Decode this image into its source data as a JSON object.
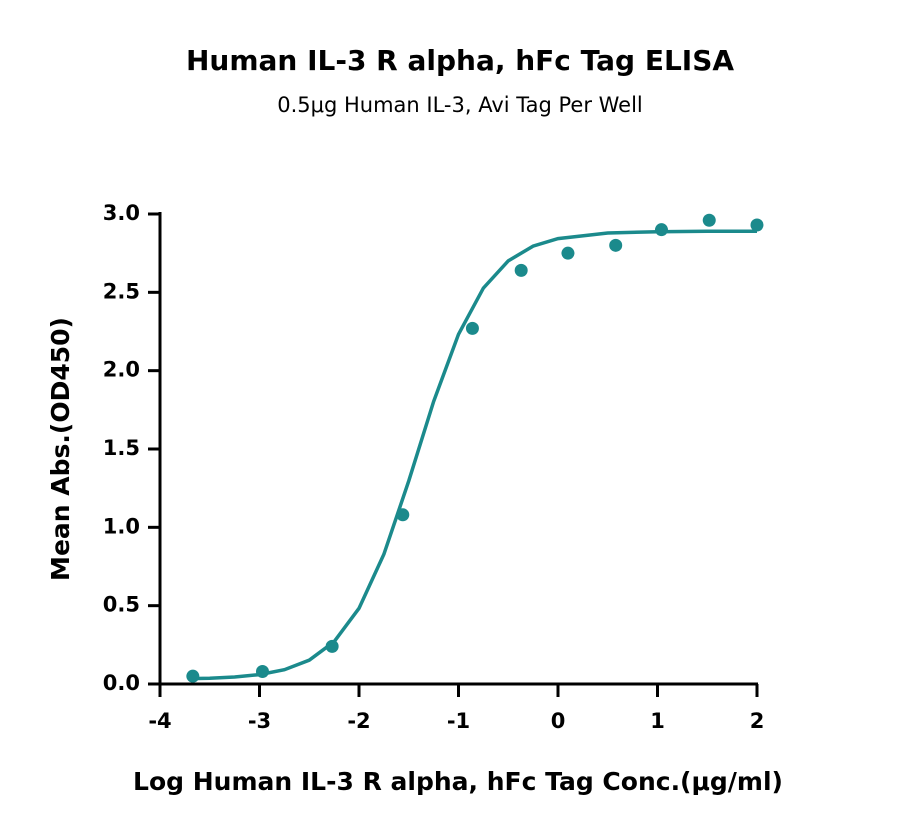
{
  "chart_data": {
    "type": "scatter",
    "title": "Human IL-3 R alpha, hFc Tag ELISA",
    "subtitle": "0.5μg Human IL-3, Avi Tag Per Well",
    "x_label": "Log Human IL-3 R alpha, hFc Tag Conc.(μg/ml)",
    "y_label": "Mean Abs.(OD450)",
    "xlim": [
      -4,
      2
    ],
    "xticks": [
      -4,
      -3,
      -2,
      -1,
      0,
      1,
      2
    ],
    "ylim": [
      0,
      3
    ],
    "yticks": [
      {
        "value": 0,
        "label": "0.0"
      },
      0.5,
      {
        "value": 1,
        "label": "1.0"
      },
      1.5,
      {
        "value": 2,
        "label": "2.0"
      },
      2.5,
      {
        "value": 3,
        "label": "3.0"
      }
    ],
    "series": [
      {
        "type": "line",
        "color": "#1b8a8c",
        "x": [
          -3.7,
          -3.5,
          -3.25,
          -3.0,
          -2.75,
          -2.5,
          -2.25,
          -2.0,
          -1.75,
          -1.5,
          -1.25,
          -1.0,
          -0.75,
          -0.5,
          -0.25,
          0,
          0.5,
          1.0,
          1.5,
          2.0
        ],
        "values": [
          0.034,
          0.037,
          0.045,
          0.06,
          0.091,
          0.152,
          0.27,
          0.483,
          0.828,
          1.296,
          1.803,
          2.232,
          2.527,
          2.701,
          2.795,
          2.843,
          2.879,
          2.887,
          2.89,
          2.89
        ]
      },
      {
        "type": "scatter",
        "color": "#1b8a8c",
        "x": [
          -3.67,
          -2.97,
          -2.27,
          -1.56,
          -0.86,
          -0.37,
          0.1,
          0.58,
          1.04,
          1.52,
          2.0
        ],
        "values": [
          0.05,
          0.08,
          0.24,
          1.08,
          2.27,
          2.64,
          2.75,
          2.8,
          2.9,
          2.96,
          2.93
        ]
      }
    ]
  }
}
